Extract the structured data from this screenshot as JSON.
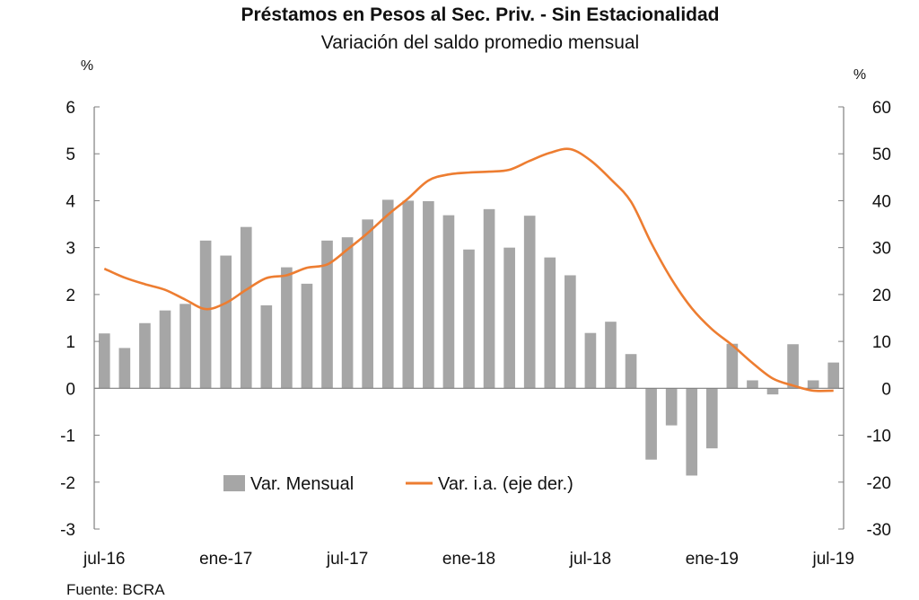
{
  "chart_data": {
    "type": "bar",
    "title": "Préstamos en Pesos al Sec. Priv. - Sin Estacionalidad",
    "subtitle": "Variación del saldo promedio mensual",
    "left_unit": "%",
    "right_unit": "%",
    "source": "Fuente: BCRA",
    "x_tick_labels": [
      "jul-16",
      "ene-17",
      "jul-17",
      "ene-18",
      "jul-18",
      "ene-19",
      "jul-19"
    ],
    "x_tick_indices": [
      0,
      6,
      12,
      18,
      24,
      30,
      36
    ],
    "categories": [
      "jul-16",
      "ago-16",
      "sep-16",
      "oct-16",
      "nov-16",
      "dic-16",
      "ene-17",
      "feb-17",
      "mar-17",
      "abr-17",
      "may-17",
      "jun-17",
      "jul-17",
      "ago-17",
      "sep-17",
      "oct-17",
      "nov-17",
      "dic-17",
      "ene-18",
      "feb-18",
      "mar-18",
      "abr-18",
      "may-18",
      "jun-18",
      "jul-18",
      "ago-18",
      "sep-18",
      "oct-18",
      "nov-18",
      "dic-18",
      "ene-19",
      "feb-19",
      "mar-19",
      "abr-19",
      "may-19",
      "jun-19",
      "jul-19"
    ],
    "y_left": {
      "min": -3,
      "max": 6,
      "ticks": [
        -3,
        -2,
        -1,
        0,
        1,
        2,
        3,
        4,
        5,
        6
      ]
    },
    "y_right": {
      "min": -30,
      "max": 60,
      "ticks": [
        -30,
        -20,
        -10,
        0,
        10,
        20,
        30,
        40,
        50,
        60
      ]
    },
    "legend_placement": "bottom-center",
    "series": [
      {
        "name": "Var. Mensual",
        "type": "bar",
        "axis": "left",
        "color": "#a6a6a6",
        "values": [
          1.17,
          0.86,
          1.39,
          1.66,
          1.8,
          3.15,
          2.83,
          3.44,
          1.77,
          2.58,
          2.23,
          3.15,
          3.22,
          3.6,
          4.02,
          4.0,
          3.99,
          3.69,
          2.96,
          3.82,
          3.0,
          3.68,
          2.79,
          2.41,
          1.18,
          1.42,
          0.73,
          -1.52,
          -0.79,
          -1.86,
          -1.28,
          0.95,
          0.17,
          -0.13,
          0.94,
          0.17,
          0.55
        ]
      },
      {
        "name": "Var. i.a. (eje der.)",
        "type": "line",
        "axis": "right",
        "color": "#ed7d31",
        "values": [
          25.5,
          23.6,
          22.2,
          21.0,
          18.9,
          16.9,
          18.2,
          21.0,
          23.5,
          24.1,
          25.7,
          26.4,
          29.6,
          33.1,
          37.0,
          40.5,
          44.3,
          45.6,
          46.0,
          46.2,
          46.6,
          48.5,
          50.2,
          51.0,
          48.6,
          44.6,
          39.8,
          31.0,
          23.3,
          17.1,
          12.6,
          9.2,
          5.4,
          2.1,
          0.6,
          -0.5,
          -0.5
        ]
      }
    ]
  }
}
